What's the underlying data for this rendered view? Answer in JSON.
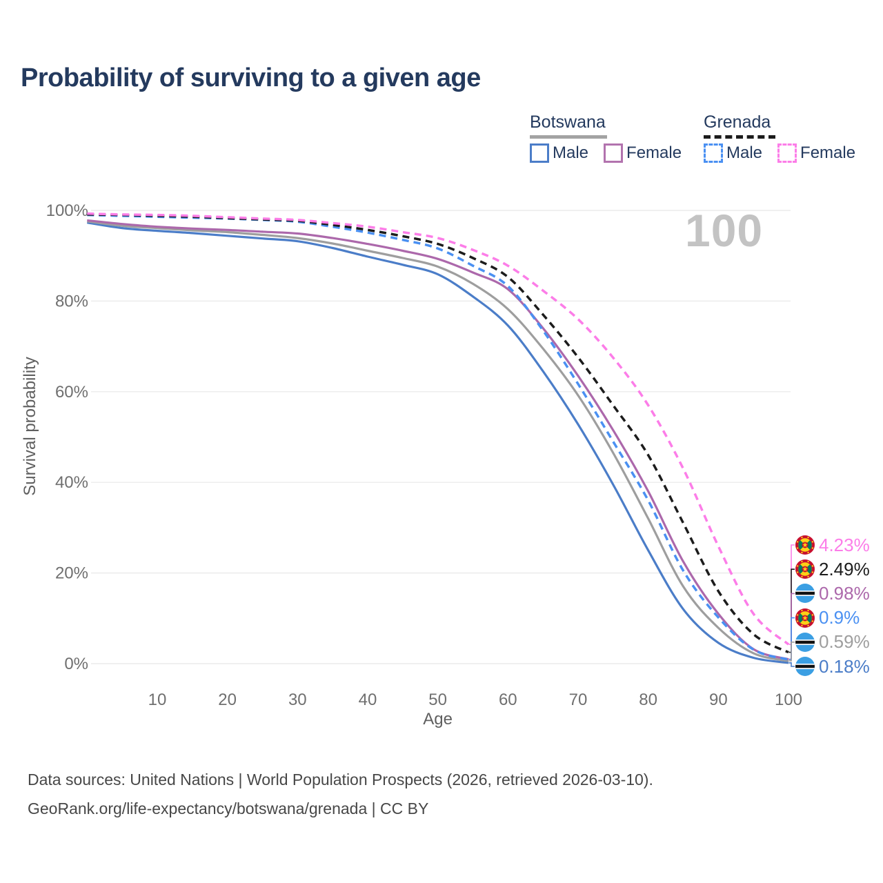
{
  "title": "Probability of surviving to a given age",
  "watermark": "100",
  "legend": {
    "botswana": {
      "title": "Botswana",
      "male_label": "Male",
      "female_label": "Female"
    },
    "grenada": {
      "title": "Grenada",
      "male_label": "Male",
      "female_label": "Female"
    }
  },
  "colors": {
    "title_text": "#243a5e",
    "gridline": "#e8e8e8",
    "tick_text": "#6f6f6f",
    "axis_title_text": "#5f5f5f",
    "watermark": "#c3c3c3",
    "footer_text": "#474747",
    "botswana_male": "#4b7dc8",
    "botswana_total": "#9e9e9e",
    "botswana_female": "#ac68ab",
    "grenada_male": "#4a90f2",
    "grenada_total": "#1c1c1c",
    "grenada_female": "#fc7de8"
  },
  "chart_data": {
    "type": "line",
    "title": "Probability of surviving to a given age",
    "xlabel": "Age",
    "ylabel": "Survival probability",
    "xlim": [
      0,
      100
    ],
    "ylim": [
      0,
      100
    ],
    "grid": "horizontal-only",
    "xticks": [
      10,
      20,
      30,
      40,
      50,
      60,
      70,
      80,
      90,
      100
    ],
    "yticks": [
      0,
      20,
      40,
      60,
      80,
      100
    ],
    "ytick_suffix": "%",
    "x": [
      0,
      5,
      10,
      15,
      20,
      25,
      30,
      35,
      40,
      45,
      50,
      55,
      60,
      65,
      70,
      75,
      80,
      85,
      90,
      95,
      100
    ],
    "series": [
      {
        "key": "botswana-male",
        "name": "Botswana Male",
        "country": "Botswana",
        "sex": "Male",
        "style": "solid",
        "color": "#4b7dc8",
        "flag": "botswana",
        "end_label": "0.18%",
        "values": [
          97.3,
          96.1,
          95.5,
          95.0,
          94.4,
          93.8,
          93.2,
          91.7,
          89.8,
          88.0,
          85.9,
          81.0,
          74.6,
          64.5,
          52.8,
          39.5,
          25.0,
          12.0,
          4.6,
          1.3,
          0.18
        ]
      },
      {
        "key": "botswana-total",
        "name": "Botswana",
        "country": "Botswana",
        "sex": "Both",
        "style": "solid",
        "color": "#9e9e9e",
        "flag": "botswana",
        "end_label": "0.59%",
        "values": [
          97.6,
          96.6,
          96.1,
          95.6,
          95.2,
          94.6,
          93.9,
          92.7,
          91.1,
          89.5,
          87.6,
          83.8,
          78.2,
          69.5,
          59.2,
          46.5,
          32.0,
          17.0,
          7.9,
          2.3,
          0.59
        ]
      },
      {
        "key": "botswana-female",
        "name": "Botswana Female",
        "country": "Botswana",
        "sex": "Female",
        "style": "solid",
        "color": "#ac68ab",
        "flag": "botswana",
        "end_label": "0.98%",
        "values": [
          97.8,
          97.0,
          96.4,
          96.0,
          95.7,
          95.3,
          94.9,
          93.9,
          92.6,
          91.1,
          89.3,
          86.3,
          82.6,
          74.0,
          63.5,
          51.5,
          38.0,
          22.5,
          11.0,
          3.2,
          0.98
        ]
      },
      {
        "key": "grenada-male",
        "name": "Grenada Male",
        "country": "Grenada",
        "sex": "Male",
        "style": "dashed",
        "color": "#4a90f2",
        "flag": "grenada",
        "end_label": "0.9%",
        "values": [
          99.0,
          98.8,
          98.6,
          98.4,
          98.2,
          97.9,
          97.5,
          96.4,
          95.1,
          93.5,
          91.6,
          87.8,
          83.3,
          73.5,
          61.7,
          49.0,
          36.0,
          20.5,
          10.2,
          3.1,
          0.9
        ]
      },
      {
        "key": "grenada-total",
        "name": "Grenada",
        "country": "Grenada",
        "sex": "Both",
        "style": "dashed",
        "color": "#1c1c1c",
        "flag": "grenada",
        "end_label": "2.49%",
        "values": [
          99.1,
          99.0,
          98.8,
          98.6,
          98.3,
          98.0,
          97.7,
          96.8,
          95.7,
          94.3,
          92.6,
          89.5,
          85.3,
          77.0,
          67.6,
          57.0,
          46.0,
          31.0,
          16.0,
          6.5,
          2.49
        ]
      },
      {
        "key": "grenada-female",
        "name": "Grenada Female",
        "country": "Grenada",
        "sex": "Female",
        "style": "dashed",
        "color": "#fc7de8",
        "flag": "grenada",
        "end_label": "4.23%",
        "values": [
          99.3,
          99.1,
          99.0,
          98.8,
          98.5,
          98.2,
          97.9,
          97.2,
          96.4,
          95.2,
          93.9,
          91.3,
          87.8,
          82.3,
          76.0,
          67.5,
          57.0,
          43.0,
          25.9,
          11.0,
          4.23
        ]
      }
    ],
    "end_labels_top_to_bottom": [
      "4.23%",
      "2.49%",
      "0.98%",
      "0.9%",
      "0.59%",
      "0.18%"
    ],
    "legend_position": "top-right"
  },
  "footer": {
    "line1": "Data sources: United Nations | World Population Prospects (2026, retrieved 2026-03-10).",
    "line2": "GeoRank.org/life-expectancy/botswana/grenada | CC BY"
  }
}
